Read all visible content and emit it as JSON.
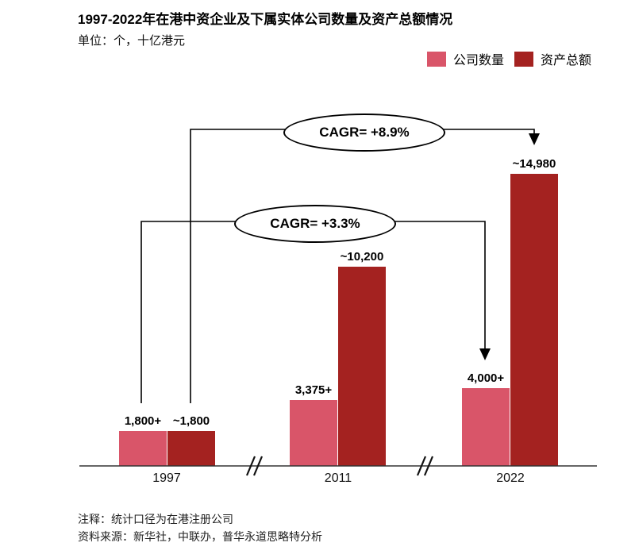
{
  "header": {
    "title": "1997-2022年在港中资企业及下属实体公司数量及资产总额情况",
    "subtitle": "单位：个，十亿港元"
  },
  "chart_data": {
    "type": "bar",
    "title": "1997-2022年在港中资企业及下属实体公司数量及资产总额情况",
    "unit": "单位：个，十亿港元",
    "categories": [
      "1997",
      "2011",
      "2022"
    ],
    "series": [
      {
        "key": "companies",
        "name": "公司数量",
        "color": "#D95569",
        "values": [
          1800,
          3375,
          4000
        ],
        "labels": [
          "1,800+",
          "3,375+",
          "4,000+"
        ]
      },
      {
        "key": "assets",
        "name": "资产总额",
        "color": "#A42220",
        "values": [
          1800,
          10200,
          14980
        ],
        "labels": [
          "~1,800",
          "~10,200",
          "~14,980"
        ]
      }
    ],
    "annotations": [
      {
        "id": "cagr-assets",
        "label": "CAGR= +8.9%",
        "series": "资产总额",
        "from_category": "1997",
        "to_category": "2022"
      },
      {
        "id": "cagr-companies",
        "label": "CAGR= +3.3%",
        "series": "公司数量",
        "from_category": "1997",
        "to_category": "2022"
      }
    ],
    "ylim": [
      0,
      15000
    ],
    "grid": false,
    "axis_breaks_between_groups": true,
    "legend_position": "top-right"
  },
  "footer": {
    "note": "注释：统计口径为在港注册公司",
    "source": "资料来源：新华社，中联办，普华永道思略特分析"
  }
}
